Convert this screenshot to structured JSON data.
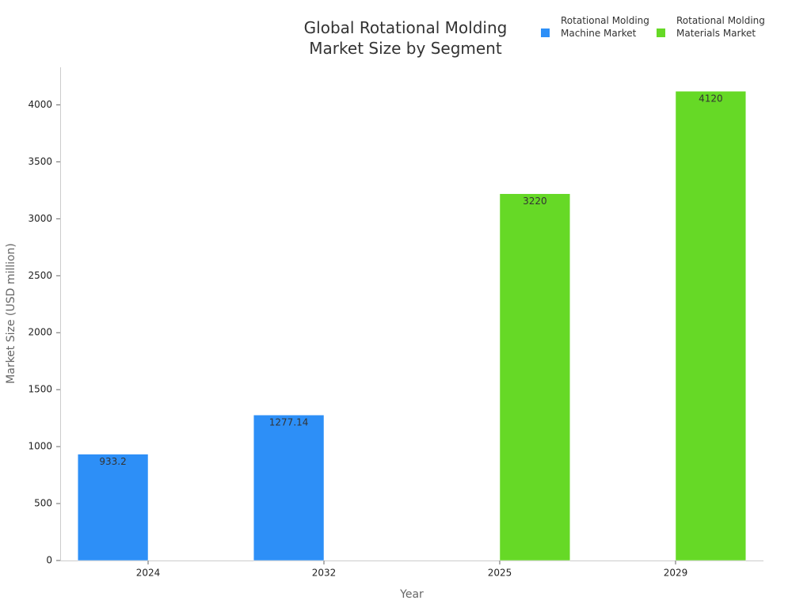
{
  "chart_data": {
    "type": "bar",
    "title": "Global Rotational Molding Market Size by Segment",
    "x_label": "Year",
    "y_label": "Market Size (USD million)",
    "categories": [
      "2024",
      "2032",
      "2025",
      "2029"
    ],
    "series": [
      {
        "name": "Rotational Molding Machine Market",
        "color": "#2d8ff7",
        "values": [
          933.2,
          1277.14,
          null,
          null
        ]
      },
      {
        "name": "Rotational Molding Materials Market",
        "color": "#66d926",
        "values": [
          null,
          null,
          3220,
          4120
        ]
      }
    ],
    "ylim": [
      0,
      4330
    ],
    "yticks": [
      0,
      500,
      1000,
      1500,
      2000,
      2500,
      3000,
      3500,
      4000
    ],
    "grid": false,
    "legend": "top-right"
  }
}
